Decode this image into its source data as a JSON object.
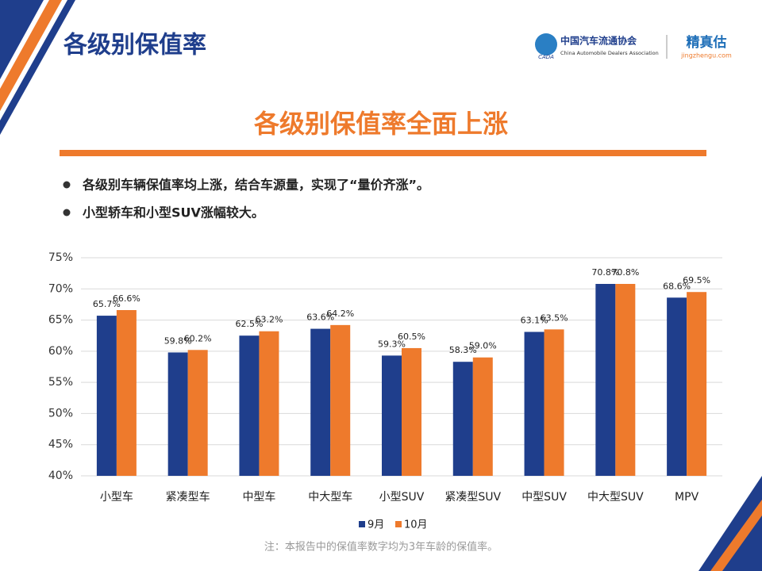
{
  "header": {
    "title": "各级别保值率",
    "logo_mark": "CADA",
    "org_cn": "中国汽车流通协会",
    "org_en": "China Automobile Dealers Association",
    "brand": "精真估",
    "brand_url": "jingzhengu.com"
  },
  "slide": {
    "headline": "各级别保值率全面上涨",
    "bullets": [
      "各级别车辆保值率均上涨，结合车源量，实现了“量价齐涨”。",
      "小型轿车和小型SUV涨幅较大。"
    ],
    "note": "注：本报告中的保值率数字均为3年车龄的保值率。"
  },
  "chart_data": {
    "type": "bar",
    "categories": [
      "小型车",
      "紧凑型车",
      "中型车",
      "中大型车",
      "小型SUV",
      "紧凑型SUV",
      "中型SUV",
      "中大型SUV",
      "MPV"
    ],
    "series": [
      {
        "name": "9月",
        "color": "#1f3e8c",
        "values": [
          65.7,
          59.8,
          62.5,
          63.6,
          59.3,
          58.3,
          63.1,
          70.8,
          68.6
        ],
        "value_labels": [
          "65.7%",
          "59.8%",
          "62.5%",
          "63.6%",
          "59.3%",
          "58.3%",
          "63.1%",
          "70.8%",
          "68.6%"
        ]
      },
      {
        "name": "10月",
        "color": "#ee7a2c",
        "values": [
          66.6,
          60.2,
          63.2,
          64.2,
          60.5,
          59.0,
          63.5,
          70.8,
          69.5
        ],
        "value_labels": [
          "66.6%",
          "60.2%",
          "63.2%",
          "64.2%",
          "60.5%",
          "59.0%",
          "63.5%",
          "70.8%",
          "69.5%"
        ]
      }
    ],
    "ylim": [
      40,
      75
    ],
    "yticks": [
      {
        "value": 40,
        "label": "40%"
      },
      {
        "value": 45,
        "label": "45%"
      },
      {
        "value": 50,
        "label": "50%"
      },
      {
        "value": 55,
        "label": "55%"
      },
      {
        "value": 60,
        "label": "60%"
      },
      {
        "value": 65,
        "label": "65%"
      },
      {
        "value": 70,
        "label": "70%"
      },
      {
        "value": 75,
        "label": "75%"
      }
    ],
    "grid": true,
    "legend": "bottom"
  }
}
